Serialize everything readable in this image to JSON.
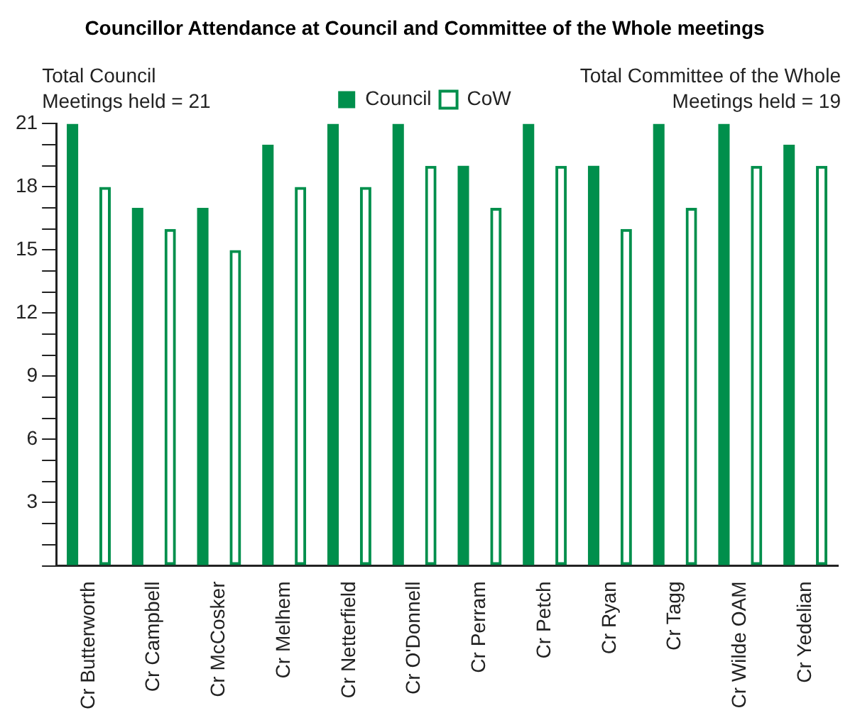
{
  "chart_data": {
    "type": "bar",
    "title": "Councillor Attendance at Council and Committee of the Whole meetings",
    "annotations": [
      "Total Council\nMeetings held = 21",
      "Total Committee of the Whole\nMeetings held = 19"
    ],
    "categories": [
      "Cr Butterworth",
      "Cr Campbell",
      "Cr McCosker",
      "Cr Melhem",
      "Cr Netterfield",
      "Cr O'Donnell",
      "Cr Perram",
      "Cr Petch",
      "Cr Ryan",
      "Cr Tagg",
      "Cr Wilde OAM",
      "Cr Yedelian"
    ],
    "series": [
      {
        "name": "Council",
        "color": "#008f4c",
        "values": [
          21,
          17,
          17,
          20,
          21,
          21,
          19,
          21,
          19,
          21,
          21,
          20
        ]
      },
      {
        "name": "CoW",
        "color": "#008f4c",
        "values": [
          18,
          16,
          15,
          18,
          18,
          19,
          17,
          19,
          16,
          17,
          19,
          19
        ]
      }
    ],
    "ylim": [
      0,
      21
    ],
    "yticks": [
      {
        "value": 0,
        "label": null
      },
      {
        "value": 1,
        "label": null
      },
      {
        "value": 2,
        "label": null
      },
      3,
      {
        "value": 4,
        "label": null
      },
      {
        "value": 5,
        "label": null
      },
      6,
      {
        "value": 7,
        "label": null
      },
      {
        "value": 8,
        "label": null
      },
      9,
      {
        "value": 10,
        "label": null
      },
      {
        "value": 11,
        "label": null
      },
      12,
      {
        "value": 13,
        "label": null
      },
      {
        "value": 14,
        "label": null
      },
      15,
      {
        "value": 16,
        "label": null
      },
      {
        "value": 17,
        "label": null
      },
      18,
      {
        "value": 19,
        "label": null
      },
      {
        "value": 20,
        "label": null
      },
      21
    ],
    "grid": false,
    "legend": "top"
  }
}
